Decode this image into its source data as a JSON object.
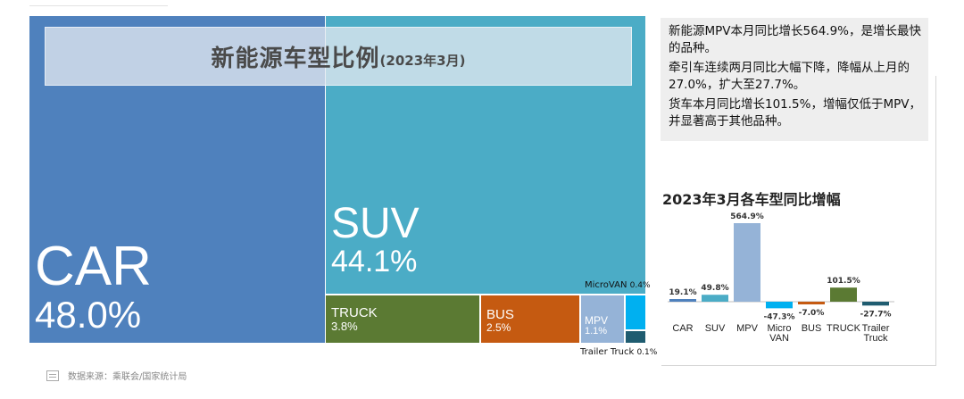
{
  "title": {
    "main": "新能源车型比例",
    "sub": "(2023年3月)"
  },
  "notes": [
    "新能源MPV本月同比增长564.9%，是增长最快的品种。",
    "牵引车连续两月同比大幅下降，降幅从上月的27.0%，扩大至27.7%。",
    "货车本月同比增长101.5%，增幅仅低于MPV，并显著高于其他品种。"
  ],
  "source": "数据来源：乘联会/国家统计局",
  "chart_data": [
    {
      "type": "treemap",
      "title": "新能源车型比例(2023年3月)",
      "categories": [
        "CAR",
        "SUV",
        "TRUCK",
        "BUS",
        "MPV",
        "MicroVAN",
        "Trailer Truck"
      ],
      "values": [
        48.0,
        44.1,
        3.8,
        2.5,
        1.1,
        0.4,
        0.1
      ],
      "labels": [
        "48.0%",
        "44.1%",
        "3.8%",
        "2.5%",
        "1.1%",
        "0.4%",
        "0.1%"
      ],
      "colors": [
        "#4f81bd",
        "#4bacc6",
        "#5b7a33",
        "#c55a11",
        "#95b3d7",
        "#00b0f0",
        "#1f5c70"
      ]
    },
    {
      "type": "bar",
      "title": "2023年3月各车型同比增幅",
      "categories": [
        "CAR",
        "SUV",
        "MPV",
        "Micro VAN",
        "BUS",
        "TRUCK",
        "Trailer Truck"
      ],
      "values": [
        19.1,
        49.8,
        564.9,
        -47.3,
        -7.0,
        101.5,
        -27.7
      ],
      "labels": [
        "19.1%",
        "49.8%",
        "564.9%",
        "-47.3%",
        "-7.0%",
        "101.5%",
        "-27.7%"
      ],
      "colors": [
        "#4f81bd",
        "#4bacc6",
        "#95b3d7",
        "#00b0f0",
        "#c55a11",
        "#5b7a33",
        "#1f5c70"
      ]
    }
  ]
}
